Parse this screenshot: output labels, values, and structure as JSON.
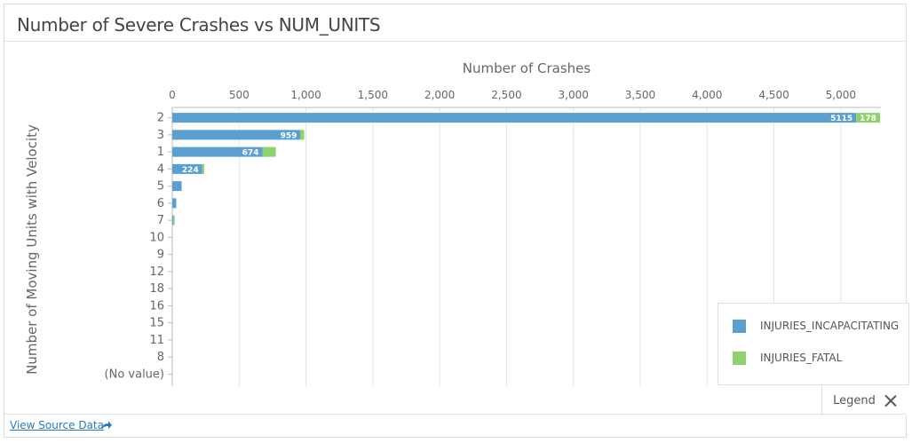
{
  "card": {
    "title": "Number of Severe Crashes vs NUM_UNITS"
  },
  "footer": {
    "source_link": "View Source Data",
    "share_icon": "share-arrow-icon"
  },
  "legend": {
    "toggle_label": "Legend",
    "close_icon": "close-icon"
  },
  "colors": {
    "incapacitating": "#5b9fcf",
    "fatal": "#8fd16d",
    "grid": "#e6e6e6",
    "axis_text": "#555555"
  },
  "chart_data": {
    "type": "bar",
    "orientation": "horizontal",
    "stacked": true,
    "title": "",
    "xlabel": "Number of Crashes",
    "ylabel": "Number of Moving Units with Velocity",
    "xlim": [
      0,
      5300
    ],
    "x_ticks": [
      0,
      500,
      1000,
      1500,
      2000,
      2500,
      3000,
      3500,
      4000,
      4500,
      5000
    ],
    "x_tick_labels": [
      "0",
      "500",
      "1,000",
      "1,500",
      "2,000",
      "2,500",
      "3,000",
      "3,500",
      "4,000",
      "4,500",
      "5,000"
    ],
    "x_axis_position": "top",
    "grid": true,
    "legend_position": "bottom-right",
    "categories": [
      "2",
      "3",
      "1",
      "4",
      "5",
      "6",
      "7",
      "10",
      "9",
      "12",
      "18",
      "16",
      "15",
      "11",
      "8",
      "(No value)"
    ],
    "series": [
      {
        "name": "INJURIES_INCAPACITATING",
        "color": "#5b9fcf",
        "values": [
          5115,
          959,
          674,
          224,
          70,
          30,
          8,
          0,
          0,
          0,
          0,
          0,
          0,
          0,
          0,
          0
        ],
        "data_labels": [
          "5115",
          "959",
          "674",
          "224",
          "",
          "",
          "",
          "",
          "",
          "",
          "",
          "",
          "",
          "",
          "",
          ""
        ]
      },
      {
        "name": "INJURIES_FATAL",
        "color": "#8fd16d",
        "values": [
          178,
          28,
          100,
          15,
          0,
          0,
          10,
          0,
          0,
          0,
          0,
          0,
          0,
          0,
          0,
          0
        ],
        "data_labels": [
          "178",
          "",
          "",
          "",
          "",
          "",
          "",
          "",
          "",
          "",
          "",
          "",
          "",
          "",
          "",
          ""
        ]
      }
    ]
  }
}
